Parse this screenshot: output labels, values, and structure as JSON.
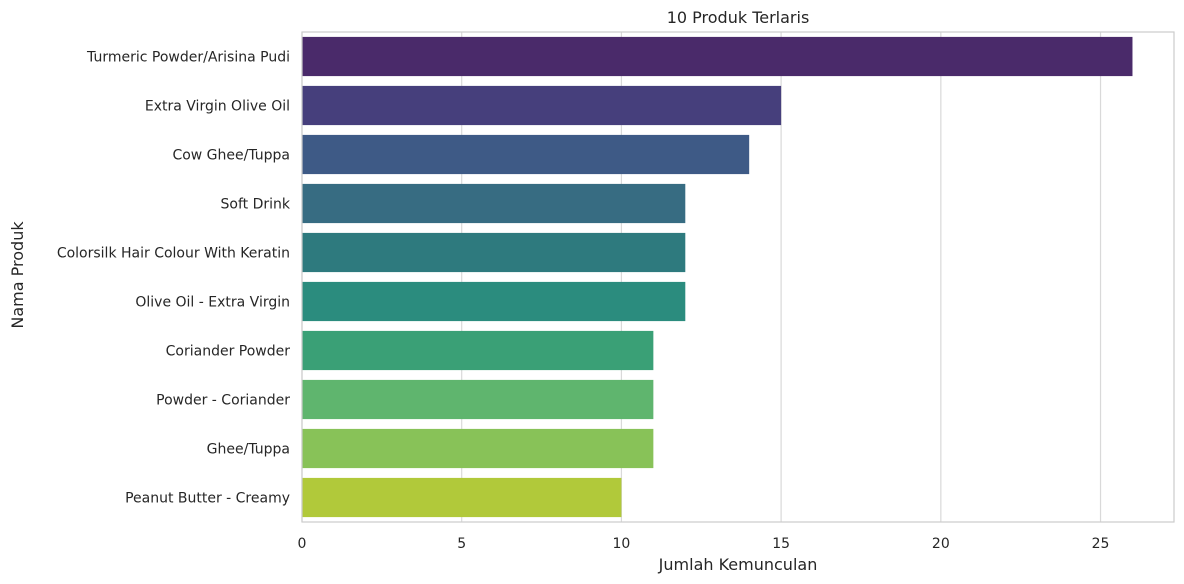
{
  "chart_data": {
    "type": "bar",
    "orientation": "horizontal",
    "title": "10 Produk Terlaris",
    "xlabel": "Jumlah Kemunculan",
    "ylabel": "Nama Produk",
    "xlim": [
      0,
      27.3
    ],
    "xticks": [
      0,
      5,
      10,
      15,
      20,
      25
    ],
    "grid": "vertical",
    "categories": [
      "Turmeric Powder/Arisina Pudi",
      "Extra Virgin Olive Oil",
      "Cow Ghee/Tuppa",
      "Soft Drink",
      "Colorsilk Hair Colour With Keratin",
      "Olive Oil - Extra Virgin",
      "Coriander Powder",
      "Powder - Coriander",
      "Ghee/Tuppa",
      "Peanut Butter - Creamy"
    ],
    "values": [
      26,
      15,
      14,
      12,
      12,
      12,
      11,
      11,
      11,
      10
    ],
    "colors": [
      "#4a2a6a",
      "#463f7c",
      "#3e5a86",
      "#376c82",
      "#2e7a7e",
      "#2b8c7e",
      "#3aa076",
      "#5fb56e",
      "#88c258",
      "#b1c93a"
    ],
    "colors_meta": {
      "grid": "#d9d9d9",
      "spine": "#cccccc",
      "text": "#262626"
    }
  }
}
